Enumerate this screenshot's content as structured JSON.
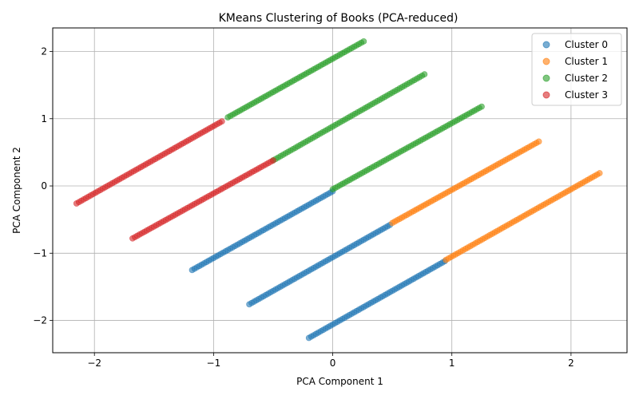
{
  "chart_data": {
    "type": "scatter",
    "title": "KMeans Clustering of Books (PCA-reduced)",
    "xlabel": "PCA Component 1",
    "ylabel": "PCA Component 2",
    "xlim": [
      -2.35,
      2.47
    ],
    "ylim": [
      -2.48,
      2.35
    ],
    "xticks": [
      -2,
      -1,
      0,
      1,
      2
    ],
    "yticks": [
      -2,
      -1,
      0,
      1,
      2
    ],
    "grid": true,
    "legend_position": "top-right",
    "point_alpha": 0.6,
    "series": [
      {
        "name": "Cluster 0",
        "color": "#1f77b4",
        "segments": [
          {
            "x0": -1.18,
            "y0": -1.25,
            "x1": 0.0,
            "y1": -0.08,
            "n": 60
          },
          {
            "x0": -0.7,
            "y0": -1.76,
            "x1": 0.48,
            "y1": -0.58,
            "n": 60
          },
          {
            "x0": -0.2,
            "y0": -2.26,
            "x1": 0.94,
            "y1": -1.12,
            "n": 58
          }
        ]
      },
      {
        "name": "Cluster 1",
        "color": "#ff7f0e",
        "segments": [
          {
            "x0": 0.5,
            "y0": -0.55,
            "x1": 1.73,
            "y1": 0.66,
            "n": 62
          },
          {
            "x0": 0.95,
            "y0": -1.1,
            "x1": 2.24,
            "y1": 0.19,
            "n": 64
          }
        ]
      },
      {
        "name": "Cluster 2",
        "color": "#2ca02c",
        "segments": [
          {
            "x0": -0.88,
            "y0": 1.02,
            "x1": 0.26,
            "y1": 2.15,
            "n": 58
          },
          {
            "x0": -0.5,
            "y0": 0.38,
            "x1": 0.77,
            "y1": 1.66,
            "n": 62
          },
          {
            "x0": 0.0,
            "y0": -0.05,
            "x1": 1.25,
            "y1": 1.18,
            "n": 62
          }
        ]
      },
      {
        "name": "Cluster 3",
        "color": "#d62728",
        "segments": [
          {
            "x0": -2.15,
            "y0": -0.26,
            "x1": -0.93,
            "y1": 0.96,
            "n": 62
          },
          {
            "x0": -1.68,
            "y0": -0.78,
            "x1": -0.5,
            "y1": 0.38,
            "n": 60
          }
        ]
      }
    ]
  }
}
